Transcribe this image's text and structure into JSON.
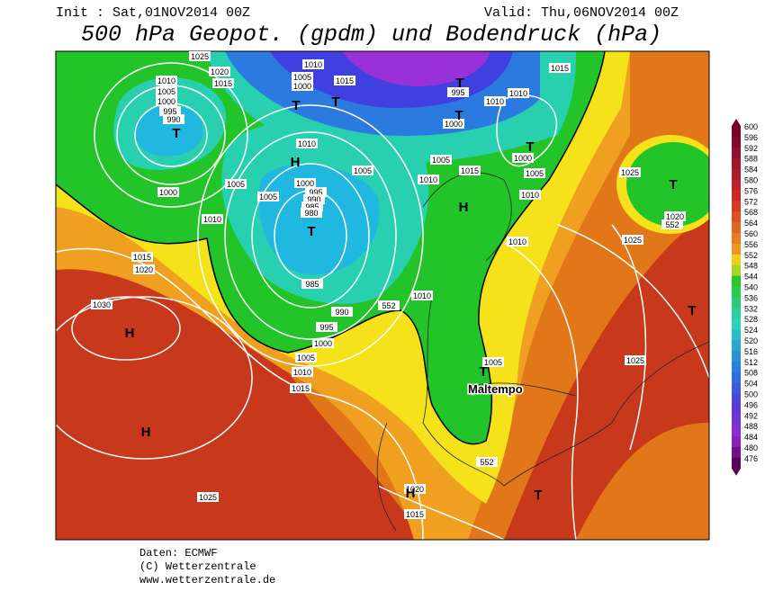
{
  "header": {
    "init": "Init : Sat,01NOV2014 00Z",
    "valid": "Valid: Thu,06NOV2014 00Z",
    "title": "500 hPa Geopot. (gpdm) und Bodendruck (hPa)"
  },
  "legend": {
    "levels": [
      600,
      596,
      592,
      588,
      584,
      580,
      576,
      572,
      568,
      564,
      560,
      556,
      552,
      548,
      544,
      540,
      536,
      532,
      528,
      524,
      520,
      516,
      512,
      508,
      504,
      500,
      496,
      492,
      488,
      484,
      480,
      476
    ]
  },
  "isobar_labels": [
    "1025",
    "1020",
    "1015",
    "1010",
    "1005",
    "1000",
    "995",
    "990",
    "1010",
    "1005",
    "1000",
    "1015",
    "995",
    "1010",
    "1010",
    "1015",
    "1000",
    "1000",
    "1005",
    "1010",
    "1005",
    "1005",
    "1015",
    "1010",
    "1010",
    "1005",
    "1005",
    "1000",
    "995",
    "990",
    "985",
    "980",
    "1000",
    "1010",
    "1015",
    "1020",
    "985",
    "990",
    "995",
    "1000",
    "1005",
    "1010",
    "1015",
    "1030",
    "1010",
    "1010",
    "1025",
    "1025",
    "1020",
    "1005",
    "1025",
    "1025",
    "1020",
    "1015",
    "552",
    "552",
    "552"
  ],
  "pressure_centers": [
    "T",
    "T",
    "T",
    "H",
    "T",
    "T",
    "T",
    "T",
    "H",
    "T",
    "H",
    "H",
    "T",
    "H",
    "T",
    "T"
  ],
  "annotation": "Maltempo",
  "footer": [
    "Daten: ECMWF",
    "(C) Wetterzentrale",
    "www.wetterzentrale.de"
  ]
}
